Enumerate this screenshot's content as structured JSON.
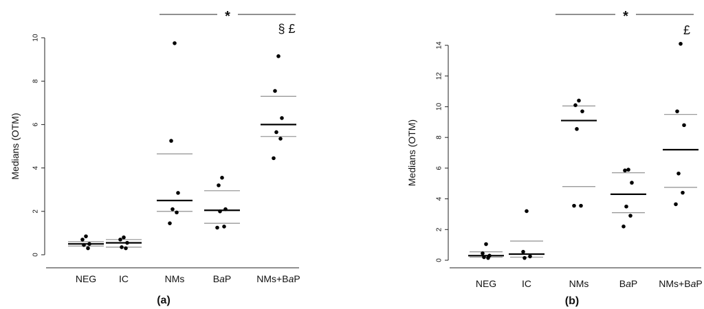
{
  "chart_data": [
    {
      "type": "scatter",
      "panel_label": "(a)",
      "ylabel": "Medians (OTM)",
      "ylim": [
        0,
        10
      ],
      "yticks": [
        0,
        2,
        4,
        6,
        8,
        10
      ],
      "categories": [
        {
          "label": "NEG",
          "plain": "",
          "italic": "",
          "suffix": ""
        },
        {
          "label": "IC",
          "plain": "",
          "italic": "",
          "suffix": ""
        },
        {
          "label": "NMs",
          "plain": "",
          "italic": "",
          "suffix": ""
        },
        {
          "label": "",
          "plain": "B",
          "italic": "a",
          "suffix": "P"
        },
        {
          "label": "",
          "plain": "NMs+B",
          "italic": "a",
          "suffix": "P"
        }
      ],
      "points": [
        [
          0.85,
          0.7,
          0.5,
          0.45,
          0.3
        ],
        [
          0.8,
          0.7,
          0.55,
          0.35,
          0.3
        ],
        [
          9.75,
          5.25,
          2.85,
          2.1,
          1.95,
          1.45
        ],
        [
          3.55,
          3.2,
          2.1,
          2.0,
          1.3,
          1.25
        ],
        [
          9.15,
          7.55,
          6.3,
          5.65,
          5.35,
          4.45
        ]
      ],
      "median": [
        0.5,
        0.55,
        2.5,
        2.05,
        6.0
      ],
      "q1": [
        0.4,
        0.35,
        2.0,
        1.45,
        5.45
      ],
      "q3": [
        0.6,
        0.7,
        4.65,
        2.95,
        7.3
      ],
      "significance": {
        "star": "*",
        "marker": "§ £"
      }
    },
    {
      "type": "scatter",
      "panel_label": "(b)",
      "ylabel": "Medians (OTM)",
      "ylim": [
        0,
        14
      ],
      "yticks": [
        0,
        2,
        4,
        6,
        8,
        10,
        12,
        14
      ],
      "categories": [
        {
          "label": "NEG",
          "plain": "",
          "italic": "",
          "suffix": ""
        },
        {
          "label": "IC",
          "plain": "",
          "italic": "",
          "suffix": ""
        },
        {
          "label": "NMs",
          "plain": "",
          "italic": "",
          "suffix": ""
        },
        {
          "label": "",
          "plain": "B",
          "italic": "a",
          "suffix": "P"
        },
        {
          "label": "",
          "plain": "NMs+B",
          "italic": "a",
          "suffix": "P"
        }
      ],
      "points": [
        [
          1.05,
          0.45,
          0.3,
          0.2,
          0.15
        ],
        [
          3.2,
          0.55,
          0.25,
          0.15
        ],
        [
          10.4,
          10.1,
          9.7,
          8.55,
          3.55,
          3.55
        ],
        [
          5.9,
          5.85,
          5.05,
          3.5,
          2.9,
          2.2
        ],
        [
          14.1,
          9.7,
          8.8,
          5.65,
          4.4,
          3.65
        ]
      ],
      "median": [
        0.3,
        0.4,
        9.1,
        4.3,
        7.2
      ],
      "q1": [
        0.2,
        0.2,
        4.8,
        3.1,
        4.75
      ],
      "q3": [
        0.55,
        1.25,
        10.05,
        5.7,
        9.5
      ],
      "significance": {
        "star": "*",
        "marker": "£"
      }
    }
  ]
}
